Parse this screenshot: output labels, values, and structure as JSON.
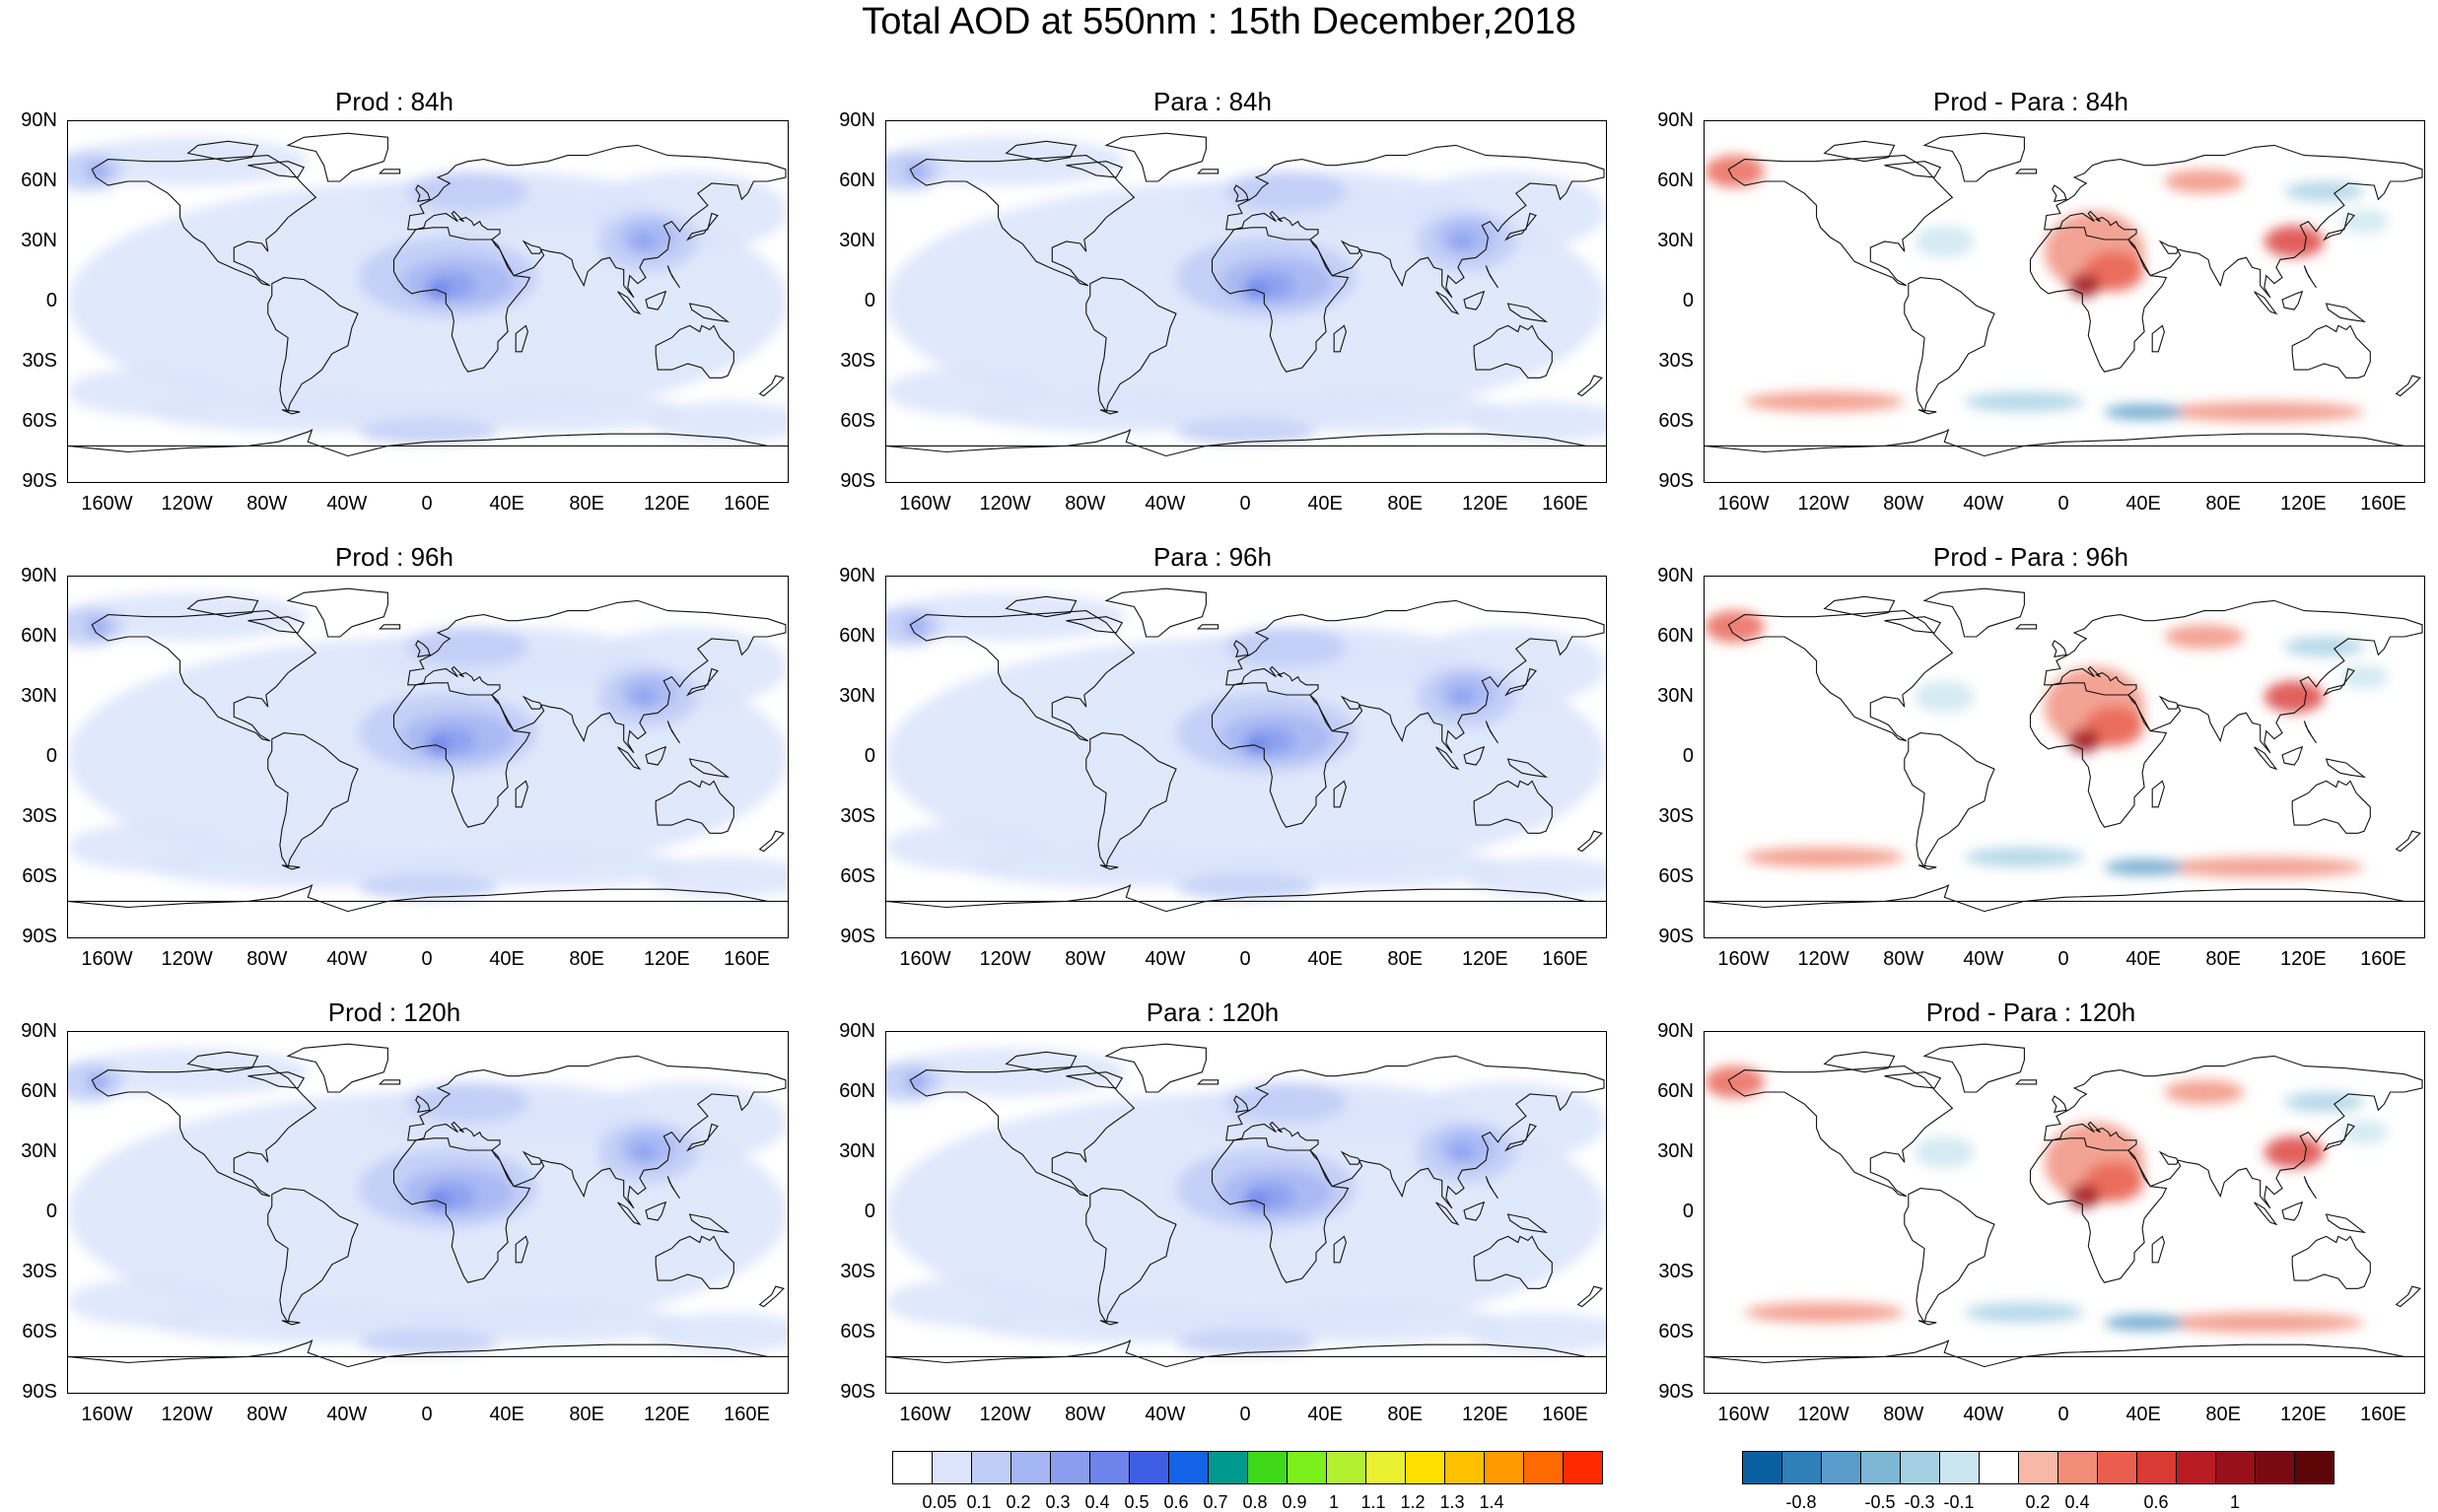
{
  "title": "Total AOD at 550nm : 15th December,2018",
  "lat_labels": [
    "90N",
    "60N",
    "30N",
    "0",
    "30S",
    "60S",
    "90S"
  ],
  "lon_labels": [
    "160W",
    "120W",
    "80W",
    "40W",
    "0",
    "40E",
    "80E",
    "120E",
    "160E"
  ],
  "panels": [
    {
      "title": "Prod : 84h",
      "kind": "aod"
    },
    {
      "title": "Para : 84h",
      "kind": "aod"
    },
    {
      "title": "Prod - Para : 84h",
      "kind": "diff"
    },
    {
      "title": "Prod : 96h",
      "kind": "aod"
    },
    {
      "title": "Para : 96h",
      "kind": "aod"
    },
    {
      "title": "Prod - Para : 96h",
      "kind": "diff"
    },
    {
      "title": "Prod : 120h",
      "kind": "aod"
    },
    {
      "title": "Para : 120h",
      "kind": "aod"
    },
    {
      "title": "Prod - Para : 120h",
      "kind": "diff"
    }
  ],
  "aod_colorbar": {
    "colors": [
      "#ffffff",
      "#dbe4fb",
      "#bfcdf7",
      "#a4b6f3",
      "#8a9ef0",
      "#6d84ec",
      "#3f5ee6",
      "#1463e6",
      "#009990",
      "#3fd91a",
      "#7cf01a",
      "#b3f030",
      "#e8f030",
      "#ffe000",
      "#ffc000",
      "#ff9a00",
      "#ff6a00",
      "#ff2a00"
    ],
    "labels": [
      "0.05",
      "0.1",
      "0.2",
      "0.3",
      "0.4",
      "0.5",
      "0.6",
      "0.7",
      "0.8",
      "0.9",
      "1",
      "1.1",
      "1.2",
      "1.3",
      "1.4"
    ]
  },
  "diff_colorbar": {
    "colors": [
      "#0a5fa0",
      "#2f7fb8",
      "#5a9cc9",
      "#7eb6d6",
      "#a5d0e3",
      "#cbe6f0",
      "#ffffff",
      "#f7b8a8",
      "#f08c78",
      "#e85f50",
      "#d93a34",
      "#b81c22",
      "#98101a",
      "#7a0a12",
      "#5c0608"
    ],
    "labels": [
      "-0.8",
      "-0.5",
      "-0.3",
      "-0.1",
      "0.2",
      "0.4",
      "0.6",
      "1"
    ]
  }
}
